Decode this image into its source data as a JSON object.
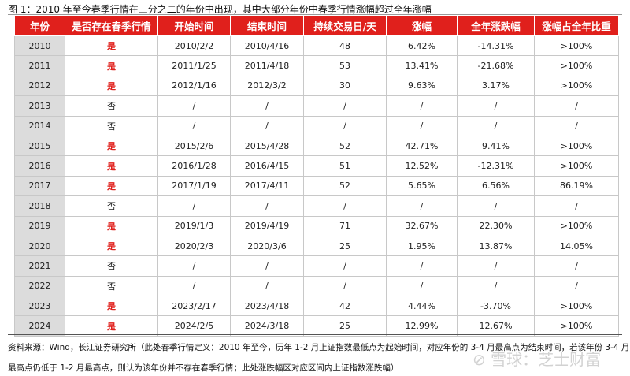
{
  "title": "图 1：2010 年至今春季行情在三分之二的年份中出现，其中大部分年份中春季行情涨幅超过全年涨幅",
  "columns": [
    "年份",
    "是否存在春季行情",
    "开始时间",
    "结束时间",
    "持续交易日/天",
    "涨幅",
    "全年涨跌幅",
    "涨幅占全年比重"
  ],
  "rows": [
    [
      "2010",
      "是",
      "2010/2/2",
      "2010/4/16",
      "48",
      "6.42%",
      "-14.31%",
      ">100%"
    ],
    [
      "2011",
      "是",
      "2011/1/25",
      "2011/4/18",
      "53",
      "13.41%",
      "-21.68%",
      ">100%"
    ],
    [
      "2012",
      "是",
      "2012/1/16",
      "2012/3/2",
      "30",
      "9.63%",
      "3.17%",
      ">100%"
    ],
    [
      "2013",
      "否",
      "/",
      "/",
      "/",
      "/",
      "/",
      "/"
    ],
    [
      "2014",
      "否",
      "/",
      "/",
      "/",
      "/",
      "/",
      "/"
    ],
    [
      "2015",
      "是",
      "2015/2/6",
      "2015/4/28",
      "52",
      "42.71%",
      "9.41%",
      ">100%"
    ],
    [
      "2016",
      "是",
      "2016/1/28",
      "2016/4/15",
      "51",
      "12.52%",
      "-12.31%",
      ">100%"
    ],
    [
      "2017",
      "是",
      "2017/1/19",
      "2017/4/11",
      "52",
      "5.65%",
      "6.56%",
      "86.19%"
    ],
    [
      "2018",
      "否",
      "/",
      "/",
      "/",
      "/",
      "/",
      "/"
    ],
    [
      "2019",
      "是",
      "2019/1/3",
      "2019/4/19",
      "71",
      "32.67%",
      "22.30%",
      ">100%"
    ],
    [
      "2020",
      "是",
      "2020/2/3",
      "2020/3/6",
      "25",
      "1.95%",
      "13.87%",
      "14.05%"
    ],
    [
      "2021",
      "否",
      "/",
      "/",
      "/",
      "/",
      "/",
      "/"
    ],
    [
      "2022",
      "否",
      "/",
      "/",
      "/",
      "/",
      "/",
      "/"
    ],
    [
      "2023",
      "是",
      "2023/2/17",
      "2023/4/18",
      "42",
      "4.44%",
      "-3.70%",
      ">100%"
    ],
    [
      "2024",
      "是",
      "2024/2/5",
      "2024/3/18",
      "25",
      "12.99%",
      "12.67%",
      ">100%"
    ]
  ],
  "source_line1": "资料来源：Wind，长江证券研究所（此处春季行情定义：2010 年至今，历年 1-2 月上证指数最低点为起始时间，对应年份的 3-4 月最高点为结束时间，若该年份 3-4 月",
  "source_line2": "最高点仍低于 1-2 月最高点，则认为该年份并不存在春季行情；此处涨跌幅区对应区间内上证指数涨跌幅）",
  "watermark": "雪球：芝士财富",
  "colors": {
    "header": "#e0201c",
    "yes": "#e0201c",
    "year_bg": "#dcdcdc"
  }
}
